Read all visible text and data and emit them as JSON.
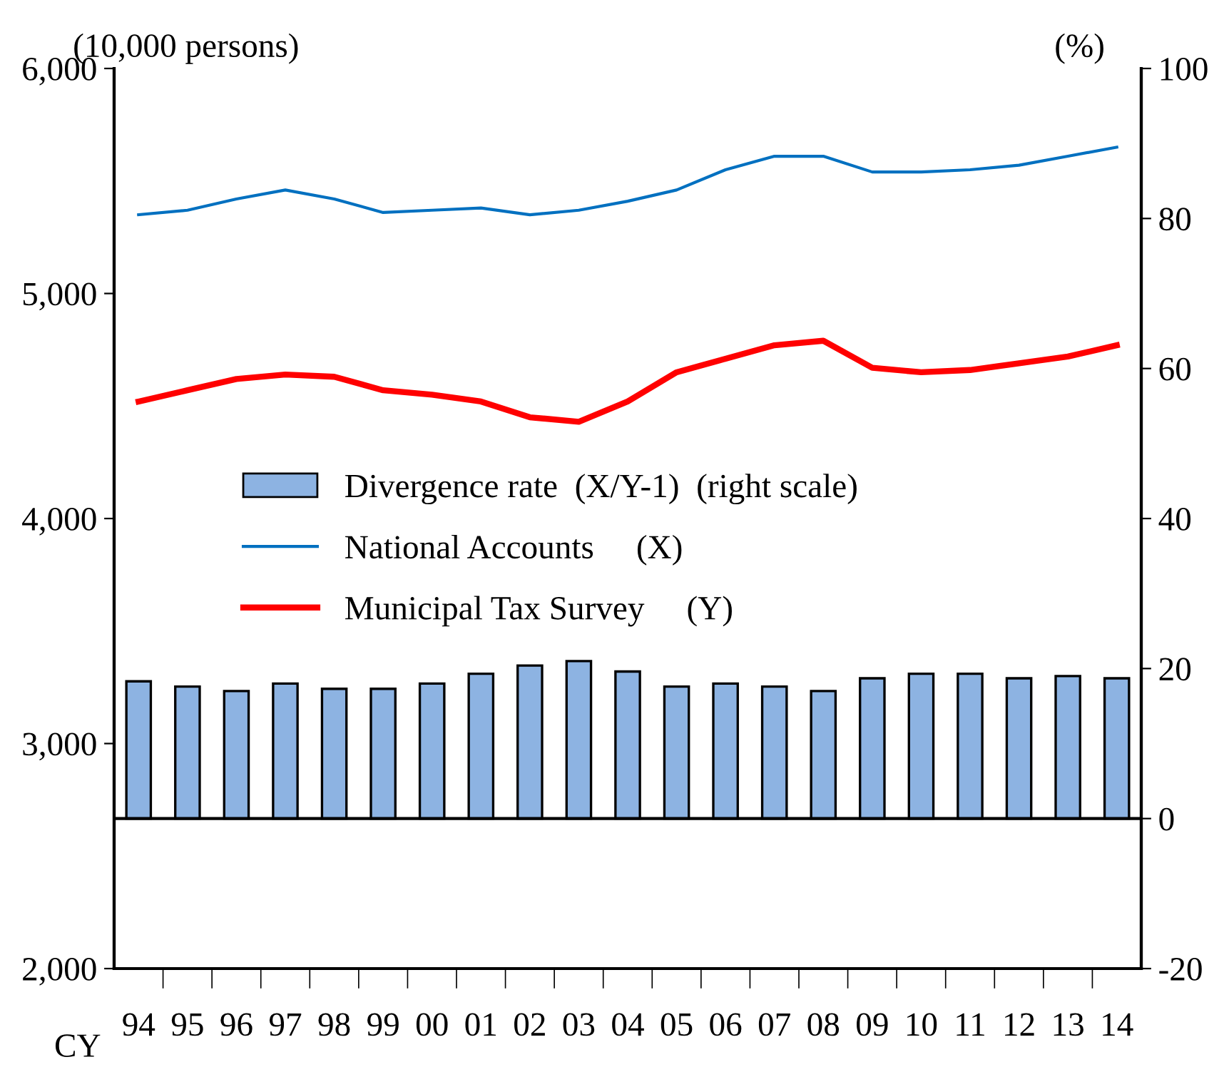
{
  "chart_data": {
    "type": "line",
    "ylabel": "(10,000 persons)",
    "y2label": "(%)",
    "xlabel": "CY",
    "categories": [
      "94",
      "95",
      "96",
      "97",
      "98",
      "99",
      "00",
      "01",
      "02",
      "03",
      "04",
      "05",
      "06",
      "07",
      "08",
      "09",
      "10",
      "11",
      "12",
      "13",
      "14"
    ],
    "series": [
      {
        "name": "Divergence rate  (X/Y-1)  (right scale)",
        "type": "bar",
        "axis": "y2",
        "color": "#8db3e2",
        "values": [
          18.3,
          17.6,
          17.0,
          18.0,
          17.3,
          17.3,
          18.0,
          19.3,
          20.4,
          21.0,
          19.6,
          17.6,
          18.0,
          17.6,
          17.0,
          18.7,
          19.3,
          19.3,
          18.7,
          19.0,
          18.7
        ]
      },
      {
        "name": "National Accounts     (X)",
        "color": "#0070c0",
        "values": [
          5350,
          5370,
          5420,
          5460,
          5420,
          5360,
          5370,
          5380,
          5350,
          5370,
          5410,
          5460,
          5550,
          5610,
          5610,
          5540,
          5540,
          5550,
          5570,
          5610,
          5650
        ]
      },
      {
        "name": "Municipal Tax Survey     (Y)",
        "color": "#ff0000",
        "values": [
          4520,
          4570,
          4620,
          4640,
          4630,
          4570,
          4550,
          4520,
          4450,
          4430,
          4520,
          4650,
          4710,
          4770,
          4790,
          4670,
          4650,
          4660,
          4690,
          4720,
          4770
        ]
      }
    ],
    "ylim": [
      2000,
      6000
    ],
    "yticks": [
      {
        "value": 2000,
        "label": "2,000"
      },
      {
        "value": 3000,
        "label": "3,000"
      },
      {
        "value": 4000,
        "label": "4,000"
      },
      {
        "value": 5000,
        "label": "5,000"
      },
      {
        "value": 6000,
        "label": "6,000"
      }
    ],
    "y2lim": [
      -20,
      100
    ],
    "y2ticks": [
      -20,
      0,
      20,
      40,
      60,
      80,
      100
    ],
    "ref_lines": [
      {
        "axis": "y2",
        "value": 0,
        "color": "#000000"
      }
    ],
    "grid": false,
    "legend": "center",
    "marker": "none",
    "line_style": "solid"
  }
}
